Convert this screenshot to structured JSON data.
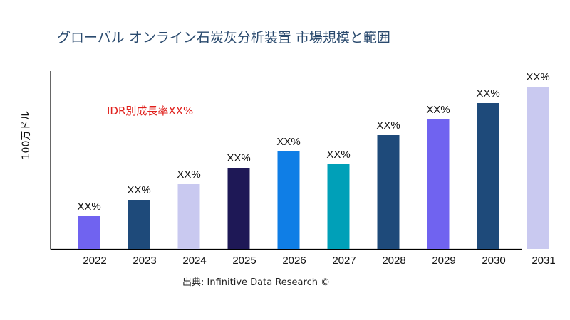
{
  "title": "グローバル オンライン石炭灰分析装置 市場規模と範囲",
  "cagr_note": "IDR別成長率XX%",
  "source": "出典: Infinitive Data Research ©",
  "chart_data": {
    "type": "bar",
    "title": "グローバル オンライン石炭灰分析装置 市場規模と範囲",
    "xlabel": "",
    "ylabel": "100万ドル",
    "categories": [
      "2022",
      "2023",
      "2024",
      "2025",
      "2026",
      "2027",
      "2028",
      "2029",
      "2030",
      "2031"
    ],
    "values": [
      46,
      69,
      91,
      114,
      137,
      119,
      160,
      182,
      205,
      228
    ],
    "data_labels": [
      "XX%",
      "XX%",
      "XX%",
      "XX%",
      "XX%",
      "XX%",
      "XX%",
      "XX%",
      "XX%",
      "XX%"
    ],
    "colors": [
      "#7063f0",
      "#1e4a7a",
      "#c9c9f0",
      "#1e1856",
      "#0f7ee6",
      "#00a0b8",
      "#1e4a7a",
      "#7063f0",
      "#1e4a7a",
      "#c9c9f0"
    ],
    "ylim": [
      0,
      250
    ],
    "grid": false,
    "y_tick_labels": false
  }
}
